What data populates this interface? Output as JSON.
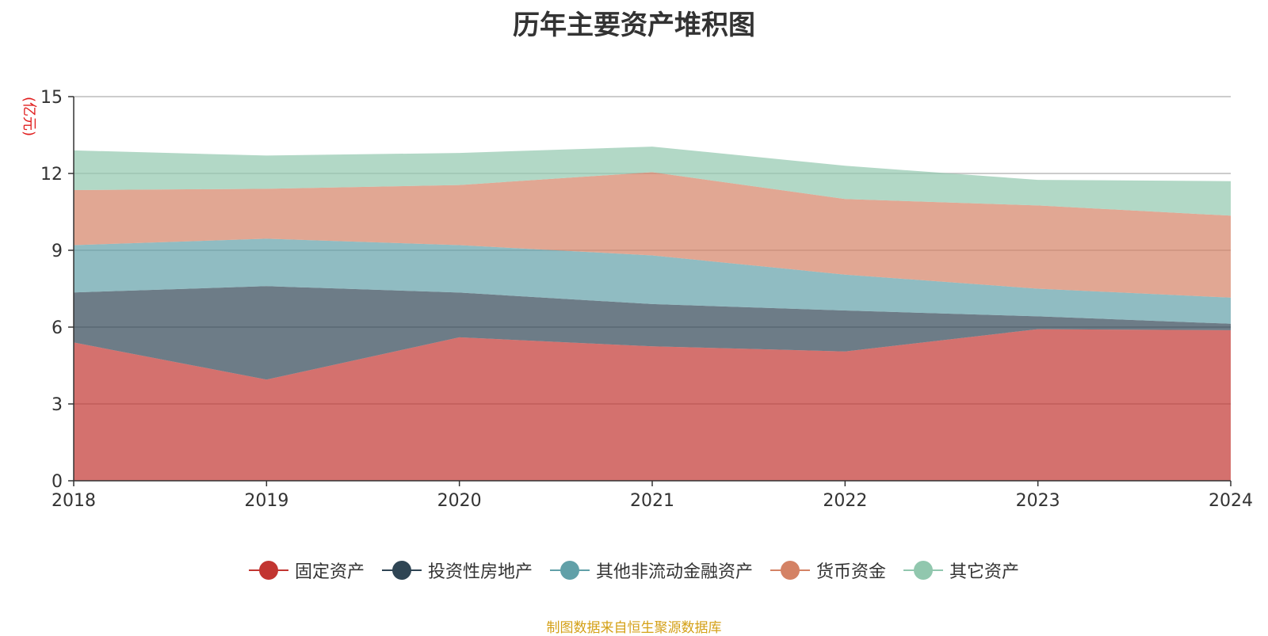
{
  "chart_data": {
    "type": "area",
    "stacked": true,
    "title": "历年主要资产堆积图",
    "ylabel": "(亿元)",
    "xlabel": "",
    "x": [
      "2018",
      "2019",
      "2020",
      "2021",
      "2022",
      "2023",
      "2024"
    ],
    "yticks": [
      "0",
      "3",
      "6",
      "9",
      "12",
      "15"
    ],
    "ylim": [
      0,
      15
    ],
    "grid": true,
    "legend_position": "bottom",
    "series": [
      {
        "name": "固定资产",
        "color": "#c23531",
        "values": [
          5.4,
          3.95,
          5.6,
          5.25,
          5.05,
          5.92,
          5.88
        ]
      },
      {
        "name": "投资性房地产",
        "color": "#2f4554",
        "values": [
          1.95,
          3.65,
          1.75,
          1.65,
          1.6,
          0.5,
          0.25
        ]
      },
      {
        "name": "其他非流动金融资产",
        "color": "#61a0a8",
        "values": [
          1.85,
          1.85,
          1.85,
          1.9,
          1.4,
          1.08,
          1.02
        ]
      },
      {
        "name": "货币资金",
        "color": "#d48265",
        "values": [
          2.15,
          1.95,
          2.35,
          3.25,
          2.95,
          3.25,
          3.2
        ]
      },
      {
        "name": "其它资产",
        "color": "#91c7ae",
        "values": [
          1.55,
          1.3,
          1.25,
          1.0,
          1.3,
          1.0,
          1.35
        ]
      }
    ],
    "source_note": "制图数据来自恒生聚源数据库"
  }
}
